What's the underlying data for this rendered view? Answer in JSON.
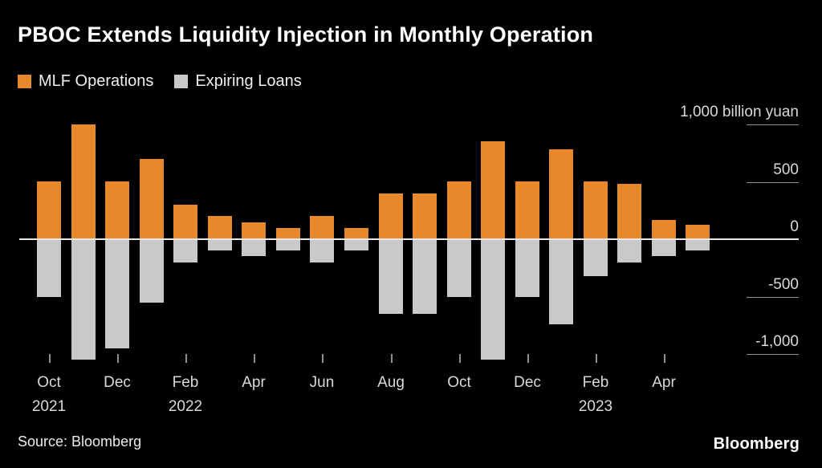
{
  "header": {
    "title": "PBOC Extends Liquidity Injection in Monthly Operation"
  },
  "legend": [
    {
      "label": "MLF Operations",
      "color": "#E8882C"
    },
    {
      "label": "Expiring Loans",
      "color": "#C9C9C9"
    }
  ],
  "footer": {
    "source": "Source: Bloomberg",
    "brand": "Bloomberg"
  },
  "chart_data": {
    "type": "bar",
    "title": "PBOC Extends Liquidity Injection in Monthly Operation",
    "unit": "billion yuan",
    "ylim": [
      -1100,
      1050
    ],
    "y_ticks": [
      1000,
      500,
      0,
      -500,
      -1000
    ],
    "y_tick_labels": [
      "1,000 billion yuan",
      "500",
      "0",
      "-500",
      "-1,000"
    ],
    "grid": "right-edge-segments",
    "legend_position": "top-left",
    "categories": [
      "Oct 2021",
      "Nov 2021",
      "Dec 2021",
      "Jan 2022",
      "Feb 2022",
      "Mar 2022",
      "Apr 2022",
      "May 2022",
      "Jun 2022",
      "Jul 2022",
      "Aug 2022",
      "Sep 2022",
      "Oct 2022",
      "Nov 2022",
      "Dec 2022",
      "Jan 2023",
      "Feb 2023",
      "Mar 2023",
      "Apr 2023",
      "May 2023"
    ],
    "series": [
      {
        "name": "MLF Operations",
        "color": "#E8882C",
        "values": [
          500,
          1000,
          500,
          700,
          300,
          200,
          150,
          100,
          200,
          100,
          400,
          400,
          500,
          850,
          500,
          780,
          500,
          480,
          170,
          125
        ]
      },
      {
        "name": "Expiring Loans",
        "color": "#C9C9C9",
        "values": [
          -500,
          -1050,
          -950,
          -550,
          -200,
          -100,
          -150,
          -100,
          -200,
          -100,
          -650,
          -650,
          -500,
          -1050,
          -500,
          -740,
          -320,
          -200,
          -150,
          -100
        ]
      }
    ],
    "x_ticks": [
      {
        "index": 0,
        "month": "Oct",
        "year": "2021"
      },
      {
        "index": 2,
        "month": "Dec",
        "year": ""
      },
      {
        "index": 4,
        "month": "Feb",
        "year": "2022"
      },
      {
        "index": 6,
        "month": "Apr",
        "year": ""
      },
      {
        "index": 8,
        "month": "Jun",
        "year": ""
      },
      {
        "index": 10,
        "month": "Aug",
        "year": ""
      },
      {
        "index": 12,
        "month": "Oct",
        "year": ""
      },
      {
        "index": 14,
        "month": "Dec",
        "year": ""
      },
      {
        "index": 16,
        "month": "Feb",
        "year": "2023"
      },
      {
        "index": 18,
        "month": "Apr",
        "year": ""
      }
    ]
  }
}
